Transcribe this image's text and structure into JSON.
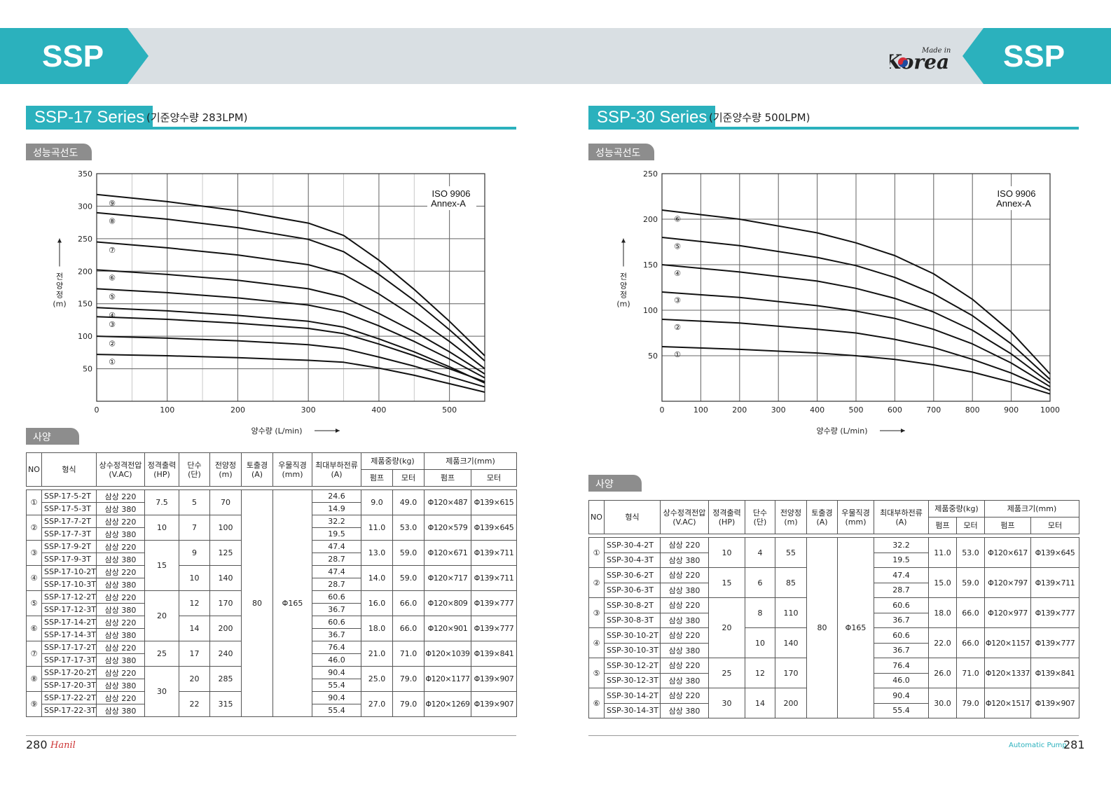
{
  "header": {
    "left_label": "SSP",
    "right_label": "SSP",
    "logo_small": "Made in",
    "logo_big": "Korea"
  },
  "left": {
    "series_title": "SSP-17 Series",
    "series_sub": "(기준양수량 283LPM)",
    "curve_label": "성능곡선도",
    "spec_label": "사양",
    "page_number": "280",
    "brand": "Hanil"
  },
  "right": {
    "series_title": "SSP-30 Series",
    "series_sub": "(기준양수량 500LPM)",
    "curve_label": "성능곡선도",
    "spec_label": "사양",
    "page_number": "281",
    "footer_text": "Automatic Pump"
  },
  "table_headers": {
    "no": "NO",
    "model": "형식",
    "voltage": "상수정격전압",
    "voltage_unit": "(V.AC)",
    "output": "정격출력",
    "output_unit": "(HP)",
    "stages": "단수",
    "stages_unit": "(단)",
    "head": "전양정",
    "head_unit": "(m)",
    "discharge": "토출경",
    "discharge_unit": "(A)",
    "well": "우물직경",
    "well_unit": "(mm)",
    "current": "최대부하전류",
    "current_unit": "(A)",
    "weight": "제품중량(kg)",
    "pump": "펌프",
    "motor": "모터",
    "size": "제품크기(mm)"
  },
  "chart_data": [
    {
      "type": "line",
      "title": "SSP-17 Series",
      "annotation": "ISO 9906 Annex-A",
      "xlabel": "양수량 (L/min)",
      "ylabel": "전양정 (m)",
      "xlim": [
        0,
        550
      ],
      "ylim": [
        0,
        350
      ],
      "xticks": [
        0,
        100,
        200,
        300,
        400,
        500
      ],
      "yticks": [
        50,
        100,
        150,
        200,
        250,
        300,
        350
      ],
      "grid": true,
      "curve_markers": [
        "①",
        "②",
        "③",
        "④",
        "⑤",
        "⑥",
        "⑦",
        "⑧",
        "⑨"
      ],
      "series": [
        {
          "name": "①",
          "x": [
            0,
            100,
            200,
            300,
            350,
            400,
            450,
            500,
            550
          ],
          "y": [
            72,
            70,
            67,
            63,
            60,
            51,
            40,
            27,
            14
          ]
        },
        {
          "name": "②",
          "x": [
            0,
            100,
            200,
            300,
            350,
            400,
            450,
            500,
            550
          ],
          "y": [
            100,
            97,
            93,
            87,
            81,
            68,
            54,
            38,
            22
          ]
        },
        {
          "name": "③",
          "x": [
            0,
            100,
            200,
            300,
            350,
            400,
            450,
            500,
            550
          ],
          "y": [
            130,
            126,
            120,
            112,
            104,
            88,
            70,
            50,
            30
          ]
        },
        {
          "name": "④",
          "x": [
            0,
            100,
            200,
            300,
            350,
            400,
            450,
            500,
            550
          ],
          "y": [
            144,
            139,
            132,
            123,
            114,
            96,
            76,
            53,
            28
          ]
        },
        {
          "name": "⑤",
          "x": [
            0,
            100,
            200,
            300,
            350,
            400,
            450,
            500,
            550
          ],
          "y": [
            173,
            167,
            159,
            148,
            137,
            116,
            92,
            65,
            36
          ]
        },
        {
          "name": "⑥",
          "x": [
            0,
            100,
            200,
            300,
            350,
            400,
            450,
            500,
            550
          ],
          "y": [
            202,
            195,
            186,
            173,
            160,
            135,
            107,
            76,
            42
          ]
        },
        {
          "name": "⑦",
          "x": [
            0,
            100,
            200,
            300,
            350,
            400,
            450,
            500,
            550
          ],
          "y": [
            245,
            236,
            225,
            210,
            195,
            165,
            130,
            92,
            50
          ]
        },
        {
          "name": "⑧",
          "x": [
            0,
            100,
            200,
            300,
            350,
            400,
            450,
            500,
            550
          ],
          "y": [
            290,
            280,
            267,
            249,
            230,
            195,
            155,
            110,
            62
          ]
        },
        {
          "name": "⑨",
          "x": [
            0,
            100,
            200,
            300,
            350,
            400,
            450,
            500,
            550
          ],
          "y": [
            318,
            307,
            293,
            274,
            255,
            217,
            172,
            123,
            70
          ]
        }
      ]
    },
    {
      "type": "line",
      "title": "SSP-30 Series",
      "annotation": "ISO 9906 Annex-A",
      "xlabel": "양수량 (L/min)",
      "ylabel": "전양정 (m)",
      "xlim": [
        0,
        1000
      ],
      "ylim": [
        0,
        250
      ],
      "xticks": [
        0,
        100,
        200,
        300,
        400,
        500,
        600,
        700,
        800,
        900,
        1000
      ],
      "yticks": [
        50,
        100,
        150,
        200,
        250
      ],
      "grid": true,
      "curve_markers": [
        "①",
        "②",
        "③",
        "④",
        "⑤",
        "⑥"
      ],
      "series": [
        {
          "name": "①",
          "x": [
            0,
            200,
            400,
            500,
            600,
            700,
            800,
            900,
            1000
          ],
          "y": [
            60,
            57,
            53,
            50,
            46,
            40,
            32,
            21,
            8
          ]
        },
        {
          "name": "②",
          "x": [
            0,
            200,
            400,
            500,
            600,
            700,
            800,
            900,
            1000
          ],
          "y": [
            90,
            86,
            79,
            75,
            68,
            59,
            46,
            31,
            12
          ]
        },
        {
          "name": "③",
          "x": [
            0,
            200,
            400,
            500,
            600,
            700,
            800,
            900,
            1000
          ],
          "y": [
            120,
            114,
            105,
            99,
            91,
            79,
            63,
            42,
            16
          ]
        },
        {
          "name": "④",
          "x": [
            0,
            200,
            400,
            500,
            600,
            700,
            800,
            900,
            1000
          ],
          "y": [
            150,
            142,
            132,
            124,
            113,
            98,
            78,
            52,
            20
          ]
        },
        {
          "name": "⑤",
          "x": [
            0,
            200,
            400,
            500,
            600,
            700,
            800,
            900,
            1000
          ],
          "y": [
            180,
            171,
            158,
            149,
            136,
            118,
            94,
            63,
            24
          ]
        },
        {
          "name": "⑥",
          "x": [
            0,
            200,
            400,
            500,
            600,
            700,
            800,
            900,
            1000
          ],
          "y": [
            210,
            200,
            185,
            174,
            160,
            140,
            112,
            76,
            30
          ]
        }
      ]
    }
  ],
  "ssp17_rows": [
    {
      "no": "①",
      "models": [
        "SSP-17-5-2T",
        "SSP-17-5-3T"
      ],
      "volts": [
        "삼상 220",
        "삼상 380"
      ],
      "hp": "7.5",
      "stages": "5",
      "head": "70",
      "amps": [
        "24.6",
        "14.9"
      ],
      "wp": "9.0",
      "wm": "49.0",
      "sp": "Φ120×487",
      "sm": "Φ139×615"
    },
    {
      "no": "②",
      "models": [
        "SSP-17-7-2T",
        "SSP-17-7-3T"
      ],
      "volts": [
        "삼상 220",
        "삼상 380"
      ],
      "hp": "10",
      "stages": "7",
      "head": "100",
      "amps": [
        "32.2",
        "19.5"
      ],
      "wp": "11.0",
      "wm": "53.0",
      "sp": "Φ120×579",
      "sm": "Φ139×645"
    },
    {
      "no": "③",
      "models": [
        "SSP-17-9-2T",
        "SSP-17-9-3T"
      ],
      "volts": [
        "삼상 220",
        "삼상 380"
      ],
      "hp": "15",
      "stages": "9",
      "head": "125",
      "amps": [
        "47.4",
        "28.7"
      ],
      "wp": "13.0",
      "wm": "59.0",
      "sp": "Φ120×671",
      "sm": "Φ139×711"
    },
    {
      "no": "④",
      "models": [
        "SSP-17-10-2T",
        "SSP-17-10-3T"
      ],
      "volts": [
        "삼상 220",
        "삼상 380"
      ],
      "hp": "",
      "stages": "10",
      "head": "140",
      "amps": [
        "47.4",
        "28.7"
      ],
      "wp": "14.0",
      "wm": "59.0",
      "sp": "Φ120×717",
      "sm": "Φ139×711"
    },
    {
      "no": "⑤",
      "models": [
        "SSP-17-12-2T",
        "SSP-17-12-3T"
      ],
      "volts": [
        "삼상 220",
        "삼상 380"
      ],
      "hp": "20",
      "stages": "12",
      "head": "170",
      "amps": [
        "60.6",
        "36.7"
      ],
      "wp": "16.0",
      "wm": "66.0",
      "sp": "Φ120×809",
      "sm": "Φ139×777"
    },
    {
      "no": "⑥",
      "models": [
        "SSP-17-14-2T",
        "SSP-17-14-3T"
      ],
      "volts": [
        "삼상 220",
        "삼상 380"
      ],
      "hp": "",
      "stages": "14",
      "head": "200",
      "amps": [
        "60.6",
        "36.7"
      ],
      "wp": "18.0",
      "wm": "66.0",
      "sp": "Φ120×901",
      "sm": "Φ139×777"
    },
    {
      "no": "⑦",
      "models": [
        "SSP-17-17-2T",
        "SSP-17-17-3T"
      ],
      "volts": [
        "삼상 220",
        "삼상 380"
      ],
      "hp": "25",
      "stages": "17",
      "head": "240",
      "amps": [
        "76.4",
        "46.0"
      ],
      "wp": "21.0",
      "wm": "71.0",
      "sp": "Φ120×1039",
      "sm": "Φ139×841"
    },
    {
      "no": "⑧",
      "models": [
        "SSP-17-20-2T",
        "SSP-17-20-3T"
      ],
      "volts": [
        "삼상 220",
        "삼상 380"
      ],
      "hp": "30",
      "stages": "20",
      "head": "285",
      "amps": [
        "90.4",
        "55.4"
      ],
      "wp": "25.0",
      "wm": "79.0",
      "sp": "Φ120×1177",
      "sm": "Φ139×907"
    },
    {
      "no": "⑨",
      "models": [
        "SSP-17-22-2T",
        "SSP-17-22-3T"
      ],
      "volts": [
        "삼상 220",
        "삼상 380"
      ],
      "hp": "",
      "stages": "22",
      "head": "315",
      "amps": [
        "90.4",
        "55.4"
      ],
      "wp": "27.0",
      "wm": "79.0",
      "sp": "Φ120×1269",
      "sm": "Φ139×907"
    }
  ],
  "ssp17_common": {
    "discharge": "80",
    "well": "Φ165"
  },
  "ssp30_rows": [
    {
      "no": "①",
      "models": [
        "SSP-30-4-2T",
        "SSP-30-4-3T"
      ],
      "volts": [
        "삼상 220",
        "삼상 380"
      ],
      "hp": "10",
      "stages": "4",
      "head": "55",
      "amps": [
        "32.2",
        "19.5"
      ],
      "wp": "11.0",
      "wm": "53.0",
      "sp": "Φ120×617",
      "sm": "Φ139×645"
    },
    {
      "no": "②",
      "models": [
        "SSP-30-6-2T",
        "SSP-30-6-3T"
      ],
      "volts": [
        "삼상 220",
        "삼상 380"
      ],
      "hp": "15",
      "stages": "6",
      "head": "85",
      "amps": [
        "47.4",
        "28.7"
      ],
      "wp": "15.0",
      "wm": "59.0",
      "sp": "Φ120×797",
      "sm": "Φ139×711"
    },
    {
      "no": "③",
      "models": [
        "SSP-30-8-2T",
        "SSP-30-8-3T"
      ],
      "volts": [
        "삼상 220",
        "삼상 380"
      ],
      "hp": "20",
      "stages": "8",
      "head": "110",
      "amps": [
        "60.6",
        "36.7"
      ],
      "wp": "18.0",
      "wm": "66.0",
      "sp": "Φ120×977",
      "sm": "Φ139×777"
    },
    {
      "no": "④",
      "models": [
        "SSP-30-10-2T",
        "SSP-30-10-3T"
      ],
      "volts": [
        "삼상 220",
        "삼상 380"
      ],
      "hp": "",
      "stages": "10",
      "head": "140",
      "amps": [
        "60.6",
        "36.7"
      ],
      "wp": "22.0",
      "wm": "66.0",
      "sp": "Φ120×1157",
      "sm": "Φ139×777"
    },
    {
      "no": "⑤",
      "models": [
        "SSP-30-12-2T",
        "SSP-30-12-3T"
      ],
      "volts": [
        "삼상 220",
        "삼상 380"
      ],
      "hp": "25",
      "stages": "12",
      "head": "170",
      "amps": [
        "76.4",
        "46.0"
      ],
      "wp": "26.0",
      "wm": "71.0",
      "sp": "Φ120×1337",
      "sm": "Φ139×841"
    },
    {
      "no": "⑥",
      "models": [
        "SSP-30-14-2T",
        "SSP-30-14-3T"
      ],
      "volts": [
        "삼상 220",
        "삼상 380"
      ],
      "hp": "30",
      "stages": "14",
      "head": "200",
      "amps": [
        "90.4",
        "55.4"
      ],
      "wp": "30.0",
      "wm": "79.0",
      "sp": "Φ120×1517",
      "sm": "Φ139×907"
    }
  ],
  "ssp30_common": {
    "discharge": "80",
    "well": "Φ165"
  }
}
